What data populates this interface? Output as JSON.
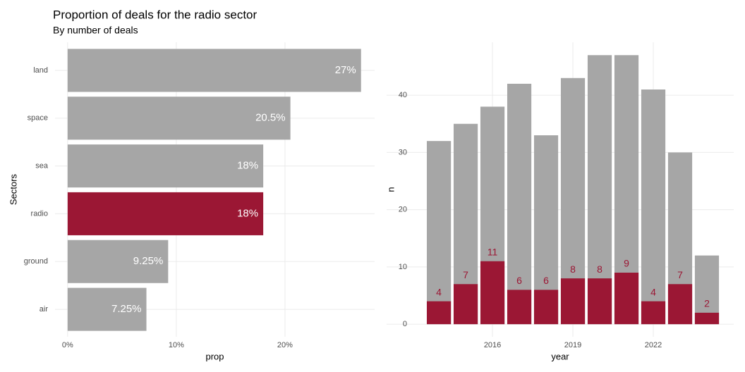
{
  "chart_data": [
    {
      "type": "hbar",
      "title": "Proportion of deals for the radio sector",
      "subtitle": "By number of deals",
      "categories": [
        "land",
        "space",
        "sea",
        "radio",
        "ground",
        "air"
      ],
      "values": [
        27,
        20.5,
        18,
        18,
        9.25,
        7.25
      ],
      "value_labels": [
        "27%",
        "20.5%",
        "18%",
        "18%",
        "9.25%",
        "7.25%"
      ],
      "colors": [
        "#a6a6a6",
        "#a6a6a6",
        "#a6a6a6",
        "#9b1734",
        "#a6a6a6",
        "#a6a6a6"
      ],
      "xlim": [
        -1.16,
        28.25
      ],
      "xticks": [
        {
          "value": 0,
          "label": "0%"
        },
        {
          "value": 10,
          "label": "10%"
        },
        {
          "value": 20,
          "label": "20%"
        }
      ],
      "xlabel": "prop",
      "ylabel": "Sectors",
      "grid": true
    },
    {
      "type": "overlay_bar",
      "x": [
        2014,
        2015,
        2016,
        2017,
        2018,
        2019,
        2020,
        2021,
        2022,
        2023,
        2024
      ],
      "series": [
        {
          "color": "#a6a6a6",
          "values": [
            32,
            35,
            38,
            42,
            33,
            43,
            47,
            47,
            41,
            30,
            12
          ]
        },
        {
          "color": "#9b1734",
          "values": [
            4,
            7,
            11,
            6,
            6,
            8,
            8,
            9,
            4,
            7,
            2
          ]
        }
      ],
      "xlim": [
        2012.05,
        2025
      ],
      "xticks": [
        2016,
        2019,
        2022
      ],
      "ylim": [
        -2.2,
        49.25
      ],
      "yticks": [
        0,
        10,
        20,
        30,
        40
      ],
      "xlabel": "year",
      "ylabel": "n",
      "grid": true
    }
  ]
}
